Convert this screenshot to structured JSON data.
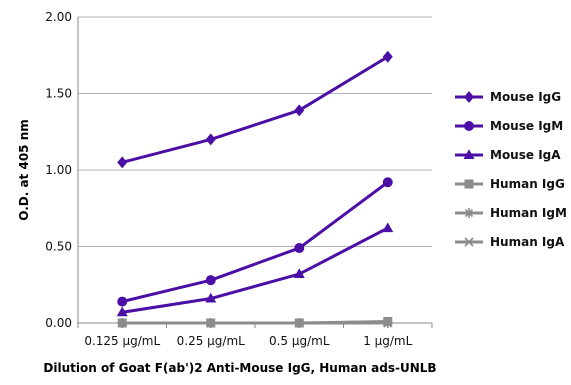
{
  "chart_data": {
    "type": "line",
    "title": "",
    "xlabel": "Dilution of Goat F(ab')2 Anti-Mouse IgG, Human ads-UNLB",
    "ylabel": "O.D. at 405 nm",
    "categories": [
      "0.125 µg/mL",
      "0.25 µg/mL",
      "0.5 µg/mL",
      "1 µg/mL"
    ],
    "ylim": [
      0,
      2
    ],
    "yticks": [
      "0.00",
      "0.50",
      "1.00",
      "1.50",
      "2.00"
    ],
    "grid": "horizontal",
    "legend_position": "right",
    "series": [
      {
        "name": "Mouse IgG",
        "values": [
          1.05,
          1.2,
          1.39,
          1.74
        ],
        "marker": "diamond",
        "color": "#4B0FA6"
      },
      {
        "name": "Mouse IgM",
        "values": [
          0.14,
          0.28,
          0.49,
          0.92
        ],
        "marker": "circle",
        "color": "#4B0FA6"
      },
      {
        "name": "Mouse IgA",
        "values": [
          0.07,
          0.16,
          0.32,
          0.62
        ],
        "marker": "triangle",
        "color": "#4B0FA6"
      },
      {
        "name": "Human IgG",
        "values": [
          0.0,
          0.0,
          0.0,
          0.01
        ],
        "marker": "square",
        "color": "#8C8C8C"
      },
      {
        "name": "Human IgM",
        "values": [
          0.0,
          0.0,
          0.0,
          0.0
        ],
        "marker": "asterisk",
        "color": "#8C8C8C"
      },
      {
        "name": "Human IgA",
        "values": [
          0.0,
          0.0,
          0.0,
          0.0
        ],
        "marker": "x",
        "color": "#8C8C8C"
      }
    ]
  }
}
